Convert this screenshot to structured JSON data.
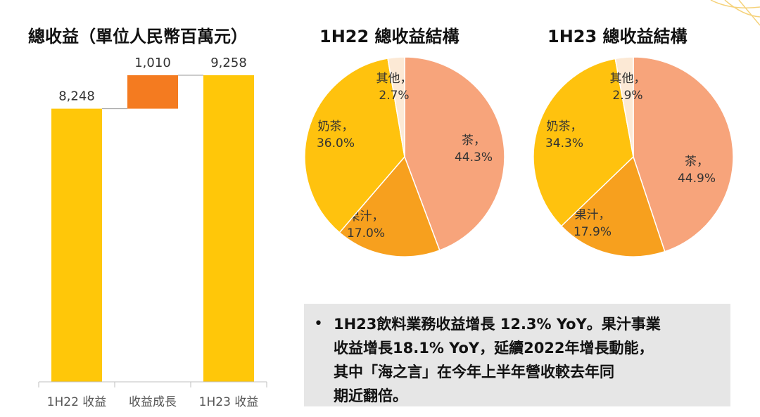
{
  "waterfall": {
    "title": "總收益（單位人民幣百萬元）"
  },
  "pies": {
    "h22_title": "1H22 總收益結構",
    "h23_title": "1H23 總收益結構"
  },
  "bullet": {
    "lines": [
      "1H23飲料業務收益增長 12.3% YoY。果汁事業",
      "收益增長18.1% YoY，延續2022年增長動能，",
      "其中「海之言」在今年上半年營收較去年同",
      "期近翻倍。"
    ]
  },
  "colors": {
    "gold": "#FFC709",
    "orange": "#F47B20",
    "salmon": "#F7A47B",
    "juice": "#F7A01E",
    "milk_tea": "#FFC20E",
    "other": "#FCE9D5",
    "axis": "#BFBFBF",
    "box": "#E6E6E6"
  },
  "chart_data": [
    {
      "type": "bar",
      "subtype": "waterfall",
      "title": "總收益（單位人民幣百萬元）",
      "categories": [
        "1H22 收益",
        "收益成長",
        "1H23 收益"
      ],
      "values": [
        8248,
        1010,
        9258
      ],
      "labels": [
        "8,248",
        "1,010",
        "9,258"
      ],
      "ylim": [
        0,
        9258
      ],
      "grid": false,
      "legend": "none"
    },
    {
      "type": "pie",
      "title": "1H22 總收益結構",
      "slices": [
        {
          "label": "茶",
          "value": 44.3,
          "text": "44.3%"
        },
        {
          "label": "果汁",
          "value": 17.0,
          "text": "17.0%"
        },
        {
          "label": "奶茶",
          "value": 36.0,
          "text": "36.0%"
        },
        {
          "label": "其他",
          "value": 2.7,
          "text": "2.7%"
        }
      ]
    },
    {
      "type": "pie",
      "title": "1H23 總收益結構",
      "slices": [
        {
          "label": "茶",
          "value": 44.9,
          "text": "44.9%"
        },
        {
          "label": "果汁",
          "value": 17.9,
          "text": "17.9%"
        },
        {
          "label": "奶茶",
          "value": 34.3,
          "text": "34.3%"
        },
        {
          "label": "其他",
          "value": 2.9,
          "text": "2.9%"
        }
      ]
    }
  ]
}
